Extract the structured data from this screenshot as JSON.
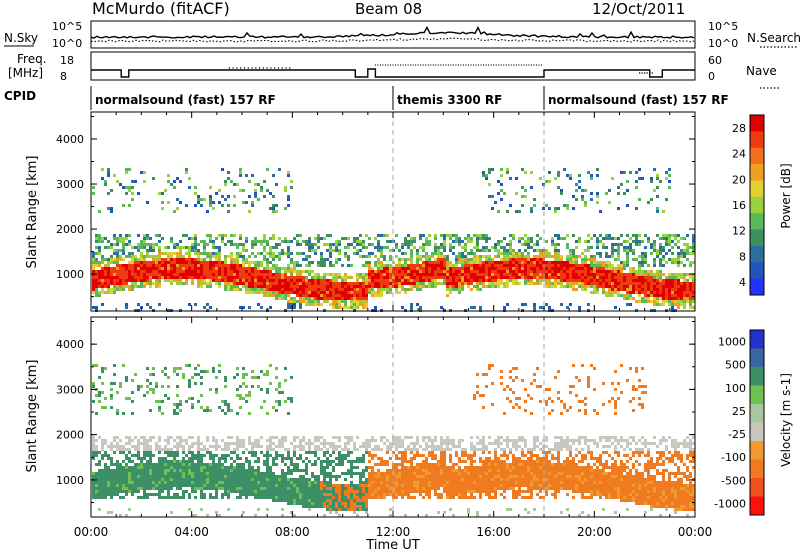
{
  "header": {
    "station": "McMurdo (fitACF)",
    "beam": "Beam 08",
    "date": "12/Oct/2011"
  },
  "noise_panel": {
    "left_label": "N.Sky",
    "right_label": "N.Search",
    "left_ticks": [
      "10^5",
      "10^0"
    ],
    "right_ticks": [
      "10^5",
      "10^0"
    ]
  },
  "freq_panel": {
    "left_label_line1": "Freq.",
    "left_label_line2": "[MHz]",
    "left_ticks": [
      "18",
      "8"
    ],
    "right_label": "Nave",
    "right_ticks": [
      "60",
      "0"
    ]
  },
  "cpid": {
    "label": "CPID",
    "segments": [
      {
        "name": "normalsound (fast) 157 RF",
        "start_hour": 0,
        "end_hour": 12
      },
      {
        "name": "themis 3300 RF",
        "start_hour": 12,
        "end_hour": 18
      },
      {
        "name": "normalsound (fast) 157 RF",
        "start_hour": 18,
        "end_hour": 24
      }
    ]
  },
  "x_axis": {
    "label": "Time UT",
    "range_hours": [
      0,
      24
    ],
    "ticks": [
      "00:00",
      "04:00",
      "08:00",
      "12:00",
      "16:00",
      "20:00",
      "00:00"
    ]
  },
  "chart_data": [
    {
      "type": "heatmap",
      "ylabel": "Slant Range [km]",
      "ylim": [
        180,
        4600
      ],
      "yticks": [
        "1000",
        "2000",
        "3000",
        "4000"
      ],
      "colorbar_label": "Power [dB]",
      "colorbar_ticks": [
        "28",
        "24",
        "20",
        "16",
        "12",
        "8",
        "4"
      ],
      "colorscale": [
        "#2233ff",
        "#2255bb",
        "#2b6fa0",
        "#3f8f5f",
        "#58b85a",
        "#98d23c",
        "#e0d030",
        "#f0a020",
        "#f07020",
        "#ee3b10",
        "#e00000"
      ]
    },
    {
      "type": "heatmap",
      "ylabel": "Slant Range [km]",
      "ylim": [
        180,
        4600
      ],
      "yticks": [
        "1000",
        "2000",
        "3000",
        "4000"
      ],
      "colorbar_label": "Velocity [m s-1]",
      "colorbar_ticks": [
        "1000",
        "500",
        "100",
        "25",
        "-25",
        "-100",
        "-500",
        "-1000"
      ],
      "colorscale": [
        "#ff1010",
        "#f05020",
        "#f07a20",
        "#f09a30",
        "#c8c8c0",
        "#a8c8a0",
        "#70c050",
        "#3c8f66",
        "#3866a0",
        "#2233cc"
      ]
    }
  ]
}
